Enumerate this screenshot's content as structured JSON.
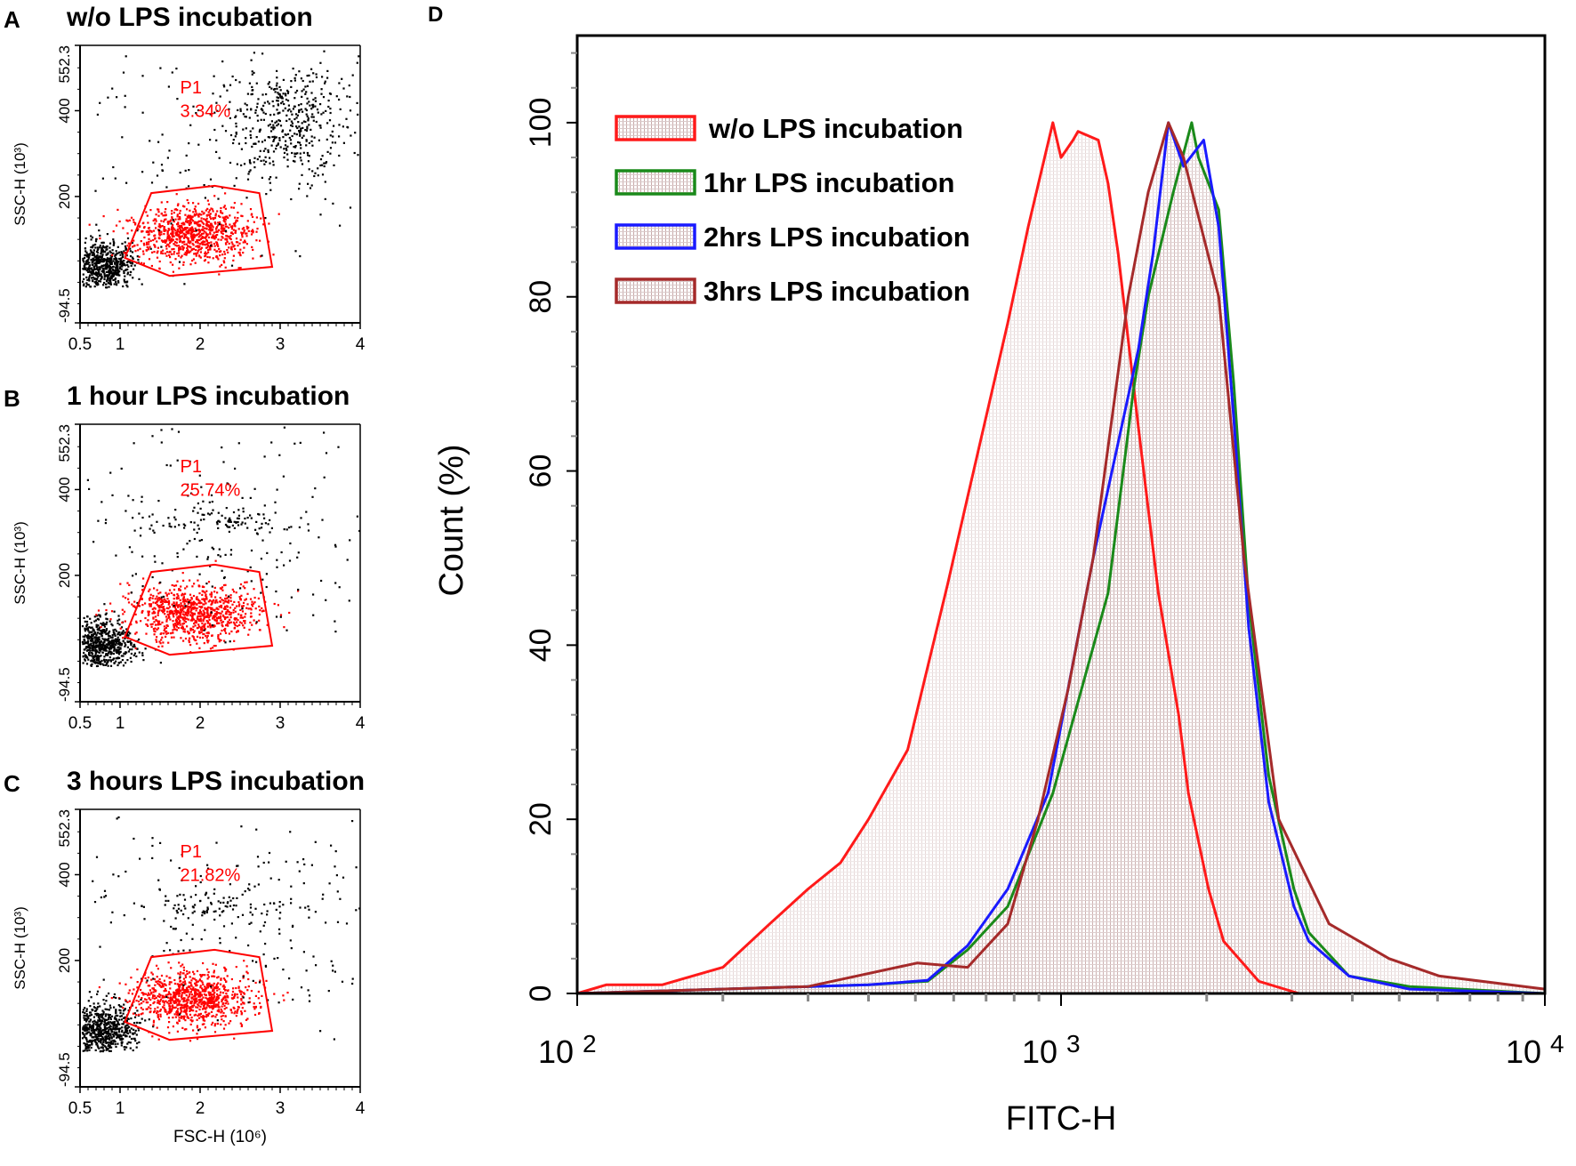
{
  "scatter_panels": [
    {
      "letter": "A",
      "title": "w/o LPS incubation",
      "gate_name": "P1",
      "gate_percent": "3.34%",
      "variant": 0
    },
    {
      "letter": "B",
      "title": "1 hour LPS incubation",
      "gate_name": "P1",
      "gate_percent": "25.74%",
      "variant": 1
    },
    {
      "letter": "C",
      "title": "3 hours LPS incubation",
      "gate_name": "P1",
      "gate_percent": "21.82%",
      "variant": 2
    }
  ],
  "scatter_axes": {
    "ylabel": "SSC-H  (10³)",
    "xlabel": "FSC-H  (10⁶)",
    "ylim": [
      -94.5,
      552.3
    ],
    "xlim": [
      0.5,
      4
    ],
    "yticks": [
      "552.3",
      "400",
      "200",
      "-94.5"
    ],
    "xticks": [
      "0.5",
      "1",
      "2",
      "3",
      "4"
    ],
    "gate_color": "#ff0000",
    "gate_polygon": [
      [
        1.06,
        57
      ],
      [
        1.39,
        208
      ],
      [
        2.18,
        225
      ],
      [
        2.74,
        208
      ],
      [
        2.9,
        36
      ],
      [
        1.62,
        15
      ]
    ]
  },
  "chart_data": {
    "type": "area",
    "panel_letter": "D",
    "xlabel": "FITC-H",
    "ylabel": "Count  (%)",
    "xscale": "log",
    "xlim": [
      100,
      10000
    ],
    "ylim": [
      0,
      110
    ],
    "xticks": [
      {
        "base": "10",
        "exp": "2"
      },
      {
        "base": "10",
        "exp": "3"
      },
      {
        "base": "10",
        "exp": "4"
      }
    ],
    "yticks": [
      "0",
      "20",
      "40",
      "60",
      "80",
      "100"
    ],
    "legend_position": "top-left",
    "series": [
      {
        "name": "w/o LPS incubation",
        "color": "#ff1a1a",
        "points": [
          [
            100,
            0
          ],
          [
            115,
            1
          ],
          [
            150,
            1
          ],
          [
            200,
            3
          ],
          [
            250,
            8
          ],
          [
            300,
            12
          ],
          [
            350,
            15
          ],
          [
            400,
            20
          ],
          [
            482,
            28
          ],
          [
            583,
            47
          ],
          [
            641,
            57
          ],
          [
            776,
            77
          ],
          [
            855,
            88
          ],
          [
            962,
            100
          ],
          [
            1000,
            96
          ],
          [
            1059,
            98
          ],
          [
            1084,
            99
          ],
          [
            1194,
            98
          ],
          [
            1251,
            93
          ],
          [
            1312,
            85
          ],
          [
            1445,
            65
          ],
          [
            1589,
            46
          ],
          [
            1750,
            32
          ],
          [
            1833,
            23
          ],
          [
            2017,
            12
          ],
          [
            2168,
            6
          ],
          [
            2562,
            1.4
          ],
          [
            3102,
            0
          ],
          [
            10000,
            0
          ]
        ]
      },
      {
        "name": "1hr LPS incubation",
        "color": "#1a8a1a",
        "points": [
          [
            100,
            0
          ],
          [
            200,
            0.5
          ],
          [
            400,
            1
          ],
          [
            530,
            1.4
          ],
          [
            641,
            5
          ],
          [
            776,
            10
          ],
          [
            962,
            23
          ],
          [
            1251,
            46
          ],
          [
            1409,
            69
          ],
          [
            1514,
            80
          ],
          [
            1706,
            92
          ],
          [
            1862,
            100
          ],
          [
            1923,
            96
          ],
          [
            2118,
            90
          ],
          [
            2275,
            70
          ],
          [
            2443,
            45
          ],
          [
            2687,
            25
          ],
          [
            3029,
            12
          ],
          [
            3252,
            7
          ],
          [
            3936,
            2
          ],
          [
            5248,
            0.8
          ],
          [
            10000,
            0
          ]
        ]
      },
      {
        "name": "2hrs LPS incubation",
        "color": "#1a1aff",
        "points": [
          [
            100,
            0
          ],
          [
            200,
            0.5
          ],
          [
            400,
            1
          ],
          [
            530,
            1.5
          ],
          [
            641,
            5.5
          ],
          [
            776,
            12
          ],
          [
            940,
            23
          ],
          [
            1165,
            50
          ],
          [
            1445,
            74
          ],
          [
            1550,
            85
          ],
          [
            1667,
            100
          ],
          [
            1791,
            95
          ],
          [
            1972,
            98
          ],
          [
            2118,
            88
          ],
          [
            2275,
            66
          ],
          [
            2443,
            42
          ],
          [
            2687,
            22
          ],
          [
            3029,
            10
          ],
          [
            3252,
            6
          ],
          [
            3936,
            2
          ],
          [
            5248,
            0.5
          ],
          [
            10000,
            0
          ]
        ]
      },
      {
        "name": "3hrs LPS incubation",
        "color": "#a52a2a",
        "points": [
          [
            100,
            0
          ],
          [
            300,
            0.8
          ],
          [
            505,
            3.5
          ],
          [
            641,
            3
          ],
          [
            776,
            8
          ],
          [
            896,
            20
          ],
          [
            1035,
            35
          ],
          [
            1165,
            50
          ],
          [
            1377,
            80
          ],
          [
            1514,
            92
          ],
          [
            1667,
            100
          ],
          [
            1791,
            96
          ],
          [
            2118,
            80
          ],
          [
            2388,
            50
          ],
          [
            2818,
            20
          ],
          [
            3581,
            8
          ],
          [
            4764,
            4
          ],
          [
            6053,
            2
          ],
          [
            10000,
            0.5
          ]
        ]
      }
    ]
  }
}
